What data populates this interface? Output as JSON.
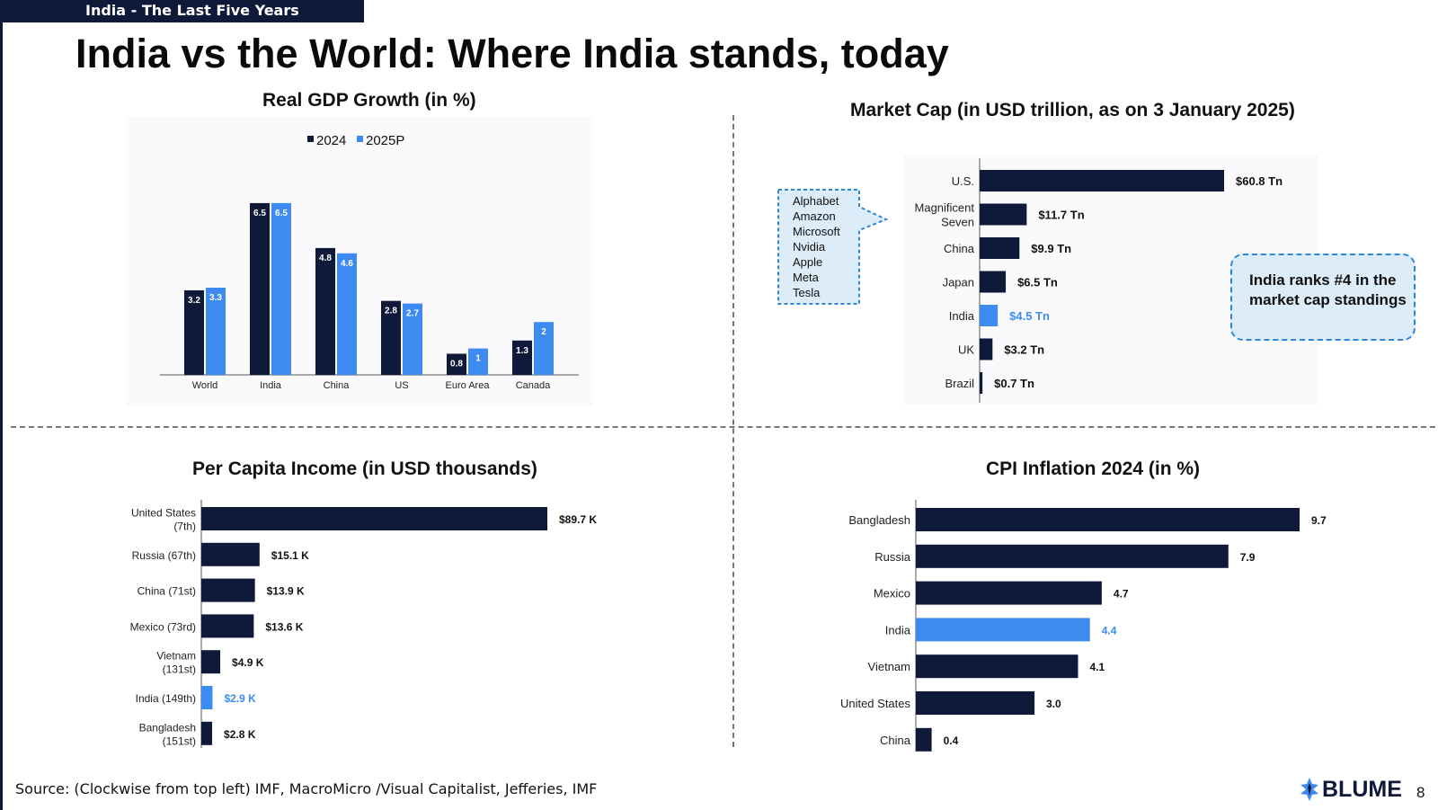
{
  "header": {
    "section_tag": "India - The Last Five Years",
    "title": "India vs the World: Where India stands, today"
  },
  "footer": {
    "source": "Source: (Clockwise from top left) IMF, MacroMicro /Visual Capitalist, Jefferies, IMF",
    "logo_text": "BLUME",
    "page_number": "8"
  },
  "colors": {
    "dark_navy": "#0f1a3a",
    "highlight_blue": "#3d8bf0",
    "callout_border": "#2f86d6",
    "callout_fill": "#dcecf8"
  },
  "callout": {
    "text": "India ranks #4 in the market cap standings"
  },
  "speech_bubble": {
    "items": [
      "Alphabet",
      "Amazon",
      "Microsoft",
      "Nvidia",
      "Apple",
      "Meta",
      "Tesla"
    ]
  },
  "chart_data": [
    {
      "id": "gdp",
      "type": "bar",
      "title": "Real GDP Growth (in %)",
      "categories": [
        "World",
        "India",
        "China",
        "US",
        "Euro Area",
        "Canada"
      ],
      "series": [
        {
          "name": "2024",
          "color": "#0f1a3a",
          "values": [
            3.2,
            6.5,
            4.8,
            2.8,
            0.8,
            1.3
          ]
        },
        {
          "name": "2025P",
          "color": "#3d8bf0",
          "values": [
            3.3,
            6.5,
            4.6,
            2.7,
            1,
            2
          ]
        }
      ],
      "value_labels": {
        "2024": [
          "3.2",
          "6.5",
          "4.8",
          "2.8",
          "0.8",
          "1.3"
        ],
        "2025P": [
          "3.3",
          "6.5",
          "4.6",
          "2.7",
          "1",
          "2"
        ]
      },
      "ylim": [
        0,
        6.5
      ],
      "legend": "top-center",
      "grid": false
    },
    {
      "id": "mcap",
      "type": "bar",
      "orientation": "horizontal",
      "title": "Market Cap (in USD trillion, as on 3 January 2025)",
      "categories": [
        "U.S.",
        "Magnificent Seven",
        "China",
        "Japan",
        "India",
        "UK",
        "Brazil"
      ],
      "values": [
        60.8,
        11.7,
        9.9,
        6.5,
        4.5,
        3.2,
        0.7
      ],
      "value_labels": [
        "$60.8 Tn",
        "$11.7 Tn",
        "$9.9 Tn",
        "$6.5 Tn",
        "$4.5 Tn",
        "$3.2 Tn",
        "$0.7 Tn"
      ],
      "highlight": "India",
      "xlim": [
        0,
        60.8
      ]
    },
    {
      "id": "income",
      "type": "bar",
      "orientation": "horizontal",
      "title": "Per Capita Income (in USD thousands)",
      "categories": [
        "United States (7th)",
        "Russia (67th)",
        "China (71st)",
        "Mexico (73rd)",
        "Vietnam (131st)",
        "India (149th)",
        "Bangladesh (151st)"
      ],
      "values": [
        89.7,
        15.1,
        13.9,
        13.6,
        4.9,
        2.9,
        2.8
      ],
      "value_labels": [
        "$89.7 K",
        "$15.1 K",
        "$13.9 K",
        "$13.6 K",
        "$4.9 K",
        "$2.9 K",
        "$2.8 K"
      ],
      "highlight": "India (149th)",
      "xlim": [
        0,
        89.7
      ]
    },
    {
      "id": "cpi",
      "type": "bar",
      "orientation": "horizontal",
      "title": "CPI Inflation 2024 (in %)",
      "categories": [
        "Bangladesh",
        "Russia",
        "Mexico",
        "India",
        "Vietnam",
        "United States",
        "China"
      ],
      "values": [
        9.7,
        7.9,
        4.7,
        4.4,
        4.1,
        3.0,
        0.4
      ],
      "value_labels": [
        "9.7",
        "7.9",
        "4.7",
        "4.4",
        "4.1",
        "3.0",
        "0.4"
      ],
      "highlight": "India",
      "xlim": [
        0,
        9.7
      ]
    }
  ]
}
